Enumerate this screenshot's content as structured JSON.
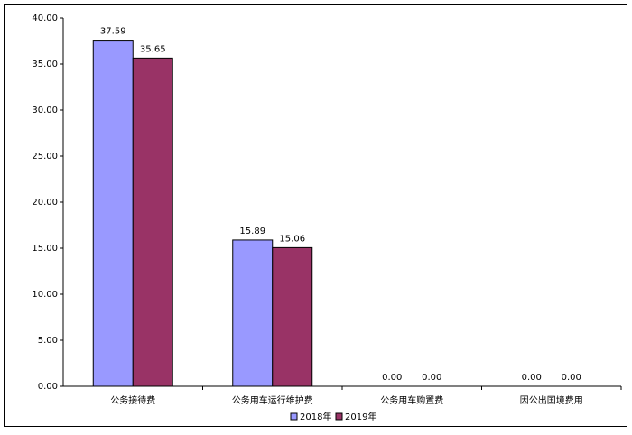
{
  "chart_data": {
    "type": "bar",
    "categories": [
      "公务接待费",
      "公务用车运行维护费",
      "公务用车购置费",
      "因公出国境费用"
    ],
    "series": [
      {
        "name": "2018年",
        "color": "#9999ff",
        "values": [
          37.59,
          15.89,
          0,
          0
        ],
        "value_labels": [
          "37.59",
          "15.89",
          "0.00",
          "0.00"
        ]
      },
      {
        "name": "2019年",
        "color": "#993366",
        "values": [
          35.65,
          15.06,
          0,
          0
        ],
        "value_labels": [
          "35.65",
          "15.06",
          "0.00",
          "0.00"
        ]
      }
    ],
    "ylim": [
      0,
      40
    ],
    "yticks": [
      {
        "value": 0,
        "label": "0.00"
      },
      {
        "value": 5,
        "label": "5.00"
      },
      {
        "value": 10,
        "label": "10.00"
      },
      {
        "value": 15,
        "label": "15.00"
      },
      {
        "value": 20,
        "label": "20.00"
      },
      {
        "value": 25,
        "label": "25.00"
      },
      {
        "value": 30,
        "label": "30.00"
      },
      {
        "value": 35,
        "label": "35.00"
      },
      {
        "value": 40,
        "label": "40.00"
      }
    ],
    "grid": false,
    "legend": "bottom"
  }
}
